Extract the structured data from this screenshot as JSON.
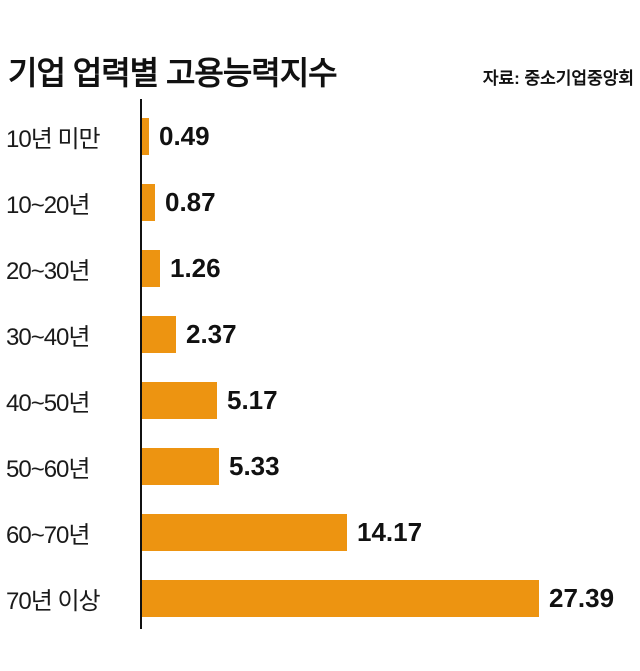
{
  "header": {
    "title": "기업 업력별 고용능력지수",
    "source": "자료: 중소기업중앙회"
  },
  "chart_data": {
    "type": "bar",
    "orientation": "horizontal",
    "title": "기업 업력별 고용능력지수",
    "source": "자료: 중소기업중앙회",
    "categories": [
      "10년 미만",
      "10~20년",
      "20~30년",
      "30~40년",
      "40~50년",
      "50~60년",
      "60~70년",
      "70년 이상"
    ],
    "values": [
      0.49,
      0.87,
      1.26,
      2.37,
      5.17,
      5.33,
      14.17,
      27.39
    ],
    "xlabel": "",
    "ylabel": "",
    "xlim": [
      0,
      28
    ],
    "bar_color": "#ED9411",
    "grid": false,
    "legend": false,
    "value_labels": [
      "0.49",
      "0.87",
      "1.26",
      "2.37",
      "5.17",
      "5.33",
      "14.17",
      "27.39"
    ]
  }
}
